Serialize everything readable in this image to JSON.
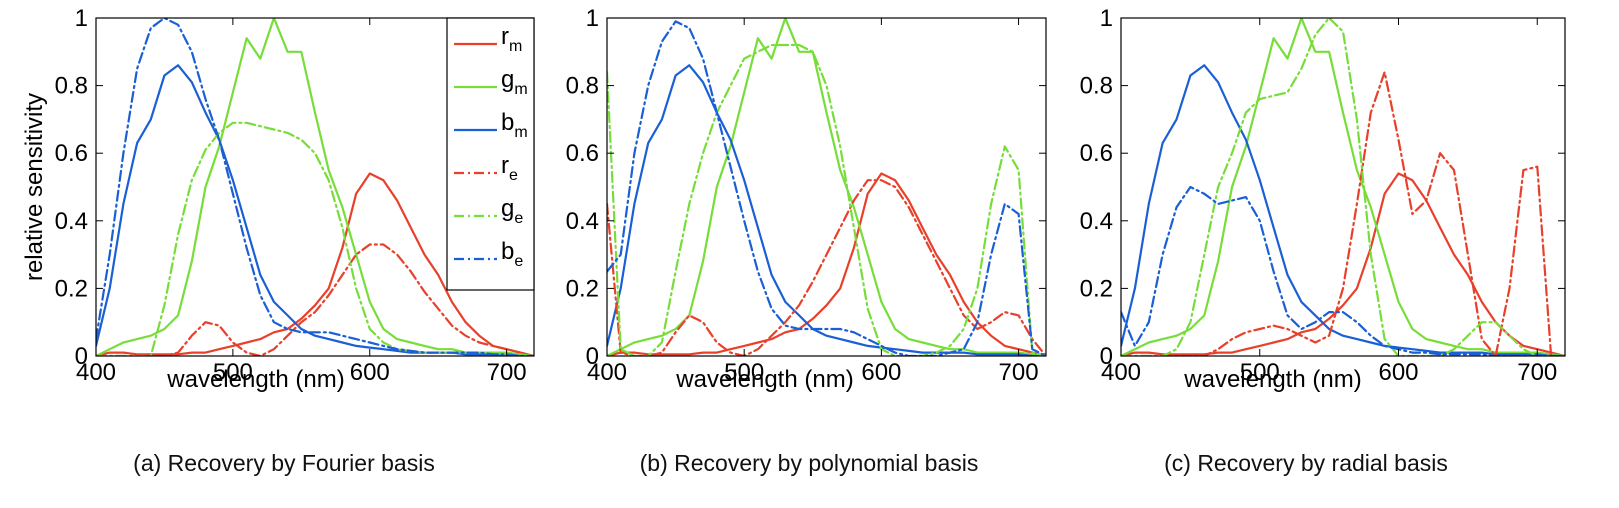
{
  "figure": {
    "ylabel": "relative sensitivity",
    "colors": {
      "red": "#e8402a",
      "green": "#77dd38",
      "blue": "#1a5fd6"
    }
  },
  "legend": [
    {
      "base": "r",
      "sub": "m",
      "color": "#e8402a",
      "style": "solid"
    },
    {
      "base": "g",
      "sub": "m",
      "color": "#77dd38",
      "style": "solid"
    },
    {
      "base": "b",
      "sub": "m",
      "color": "#1a5fd6",
      "style": "solid"
    },
    {
      "base": "r",
      "sub": "e",
      "color": "#e8402a",
      "style": "dashdot"
    },
    {
      "base": "g",
      "sub": "e",
      "color": "#77dd38",
      "style": "dashdot"
    },
    {
      "base": "b",
      "sub": "e",
      "color": "#1a5fd6",
      "style": "dashdot"
    }
  ],
  "chart_data": [
    {
      "type": "line",
      "caption": "(a) Recovery by Fourier basis",
      "xlabel": "wavelength (nm)",
      "ylabel": "relative sensitivity",
      "xlim": [
        400,
        720
      ],
      "ylim": [
        0,
        1
      ],
      "xticks": [
        400,
        500,
        600,
        700
      ],
      "yticks": [
        0,
        0.2,
        0.4,
        0.6,
        0.8,
        1
      ],
      "ytick_labels": [
        "0",
        "0.2",
        "0.4",
        "0.6",
        "0.8",
        "1"
      ],
      "legend": "top-right",
      "x": [
        400,
        410,
        420,
        430,
        440,
        450,
        460,
        470,
        480,
        490,
        500,
        510,
        520,
        530,
        540,
        550,
        560,
        570,
        580,
        590,
        600,
        610,
        620,
        630,
        640,
        650,
        660,
        670,
        680,
        690,
        700,
        710,
        720
      ],
      "series": [
        {
          "name": "r_m",
          "style": "solid",
          "color": "#e8402a",
          "values": [
            0,
            0.01,
            0.01,
            0.005,
            0.005,
            0.005,
            0.005,
            0.01,
            0.01,
            0.02,
            0.03,
            0.04,
            0.05,
            0.07,
            0.08,
            0.11,
            0.15,
            0.2,
            0.32,
            0.48,
            0.54,
            0.52,
            0.46,
            0.38,
            0.3,
            0.24,
            0.16,
            0.1,
            0.06,
            0.03,
            0.02,
            0.01,
            0
          ]
        },
        {
          "name": "g_m",
          "style": "solid",
          "color": "#77dd38",
          "values": [
            0,
            0.02,
            0.04,
            0.05,
            0.06,
            0.08,
            0.12,
            0.28,
            0.5,
            0.62,
            0.78,
            0.94,
            0.88,
            1.0,
            0.9,
            0.9,
            0.72,
            0.55,
            0.44,
            0.3,
            0.16,
            0.08,
            0.05,
            0.04,
            0.03,
            0.02,
            0.02,
            0.01,
            0.01,
            0.01,
            0.01,
            0.005,
            0
          ]
        },
        {
          "name": "b_m",
          "style": "solid",
          "color": "#1a5fd6",
          "values": [
            0.03,
            0.2,
            0.45,
            0.63,
            0.7,
            0.83,
            0.86,
            0.81,
            0.72,
            0.64,
            0.52,
            0.38,
            0.24,
            0.16,
            0.12,
            0.08,
            0.06,
            0.05,
            0.04,
            0.03,
            0.025,
            0.02,
            0.015,
            0.01,
            0.01,
            0.01,
            0.01,
            0.005,
            0.005,
            0.005,
            0.005,
            0,
            0
          ]
        },
        {
          "name": "r_e",
          "style": "dashdot",
          "color": "#e8402a",
          "values": [
            0,
            0,
            0,
            0,
            0,
            0,
            0.01,
            0.06,
            0.1,
            0.09,
            0.04,
            0.01,
            0,
            0.02,
            0.06,
            0.1,
            0.13,
            0.18,
            0.24,
            0.3,
            0.33,
            0.33,
            0.3,
            0.25,
            0.19,
            0.14,
            0.09,
            0.06,
            0.04,
            0.03,
            0.02,
            0.01,
            0
          ]
        },
        {
          "name": "g_e",
          "style": "dashdot",
          "color": "#77dd38",
          "values": [
            0,
            0,
            0,
            0,
            0,
            0.15,
            0.36,
            0.52,
            0.61,
            0.66,
            0.69,
            0.69,
            0.68,
            0.67,
            0.66,
            0.64,
            0.6,
            0.52,
            0.38,
            0.2,
            0.08,
            0.04,
            0.02,
            0.015,
            0.01,
            0.01,
            0.01,
            0.01,
            0.01,
            0.01,
            0.005,
            0.005,
            0
          ]
        },
        {
          "name": "b_e",
          "style": "dashdot",
          "color": "#1a5fd6",
          "values": [
            0.05,
            0.3,
            0.6,
            0.85,
            0.97,
            1.0,
            0.98,
            0.9,
            0.76,
            0.64,
            0.48,
            0.32,
            0.18,
            0.1,
            0.08,
            0.07,
            0.07,
            0.07,
            0.06,
            0.05,
            0.04,
            0.03,
            0.02,
            0.015,
            0.01,
            0.01,
            0.01,
            0.01,
            0.01,
            0.005,
            0.005,
            0,
            0
          ]
        }
      ]
    },
    {
      "type": "line",
      "caption": "(b) Recovery by polynomial basis",
      "xlabel": "wavelength (nm)",
      "ylabel": "",
      "xlim": [
        400,
        720
      ],
      "ylim": [
        0,
        1
      ],
      "xticks": [
        400,
        500,
        600,
        700
      ],
      "yticks": [
        0,
        0.2,
        0.4,
        0.6,
        0.8,
        1
      ],
      "ytick_labels": [
        "0",
        "0.2",
        "0.4",
        "0.6",
        "0.8",
        "1"
      ],
      "x": [
        400,
        410,
        420,
        430,
        440,
        450,
        460,
        470,
        480,
        490,
        500,
        510,
        520,
        530,
        540,
        550,
        560,
        570,
        580,
        590,
        600,
        610,
        620,
        630,
        640,
        650,
        660,
        670,
        680,
        690,
        700,
        710,
        720
      ],
      "series": [
        {
          "name": "r_m",
          "style": "solid",
          "color": "#e8402a",
          "values": [
            0,
            0.01,
            0.01,
            0.005,
            0.005,
            0.005,
            0.005,
            0.01,
            0.01,
            0.02,
            0.03,
            0.04,
            0.05,
            0.07,
            0.08,
            0.11,
            0.15,
            0.2,
            0.32,
            0.48,
            0.54,
            0.52,
            0.46,
            0.38,
            0.3,
            0.24,
            0.16,
            0.1,
            0.06,
            0.03,
            0.02,
            0.01,
            0
          ]
        },
        {
          "name": "g_m",
          "style": "solid",
          "color": "#77dd38",
          "values": [
            0,
            0.02,
            0.04,
            0.05,
            0.06,
            0.08,
            0.12,
            0.28,
            0.5,
            0.62,
            0.78,
            0.94,
            0.88,
            1.0,
            0.9,
            0.9,
            0.72,
            0.55,
            0.44,
            0.3,
            0.16,
            0.08,
            0.05,
            0.04,
            0.03,
            0.02,
            0.02,
            0.01,
            0.01,
            0.01,
            0.01,
            0.005,
            0
          ]
        },
        {
          "name": "b_m",
          "style": "solid",
          "color": "#1a5fd6",
          "values": [
            0.03,
            0.2,
            0.45,
            0.63,
            0.7,
            0.83,
            0.86,
            0.81,
            0.72,
            0.64,
            0.52,
            0.38,
            0.24,
            0.16,
            0.12,
            0.08,
            0.06,
            0.05,
            0.04,
            0.03,
            0.025,
            0.02,
            0.015,
            0.01,
            0.01,
            0.01,
            0.01,
            0.005,
            0.005,
            0.005,
            0.005,
            0,
            0
          ]
        },
        {
          "name": "r_e",
          "style": "dashdot",
          "color": "#e8402a",
          "values": [
            0.45,
            0.01,
            0,
            0,
            0.01,
            0.07,
            0.12,
            0.1,
            0.04,
            0.01,
            0,
            0.02,
            0.06,
            0.1,
            0.15,
            0.22,
            0.3,
            0.38,
            0.46,
            0.52,
            0.52,
            0.5,
            0.44,
            0.36,
            0.28,
            0.2,
            0.12,
            0.08,
            0.1,
            0.13,
            0.12,
            0.05,
            0
          ]
        },
        {
          "name": "g_e",
          "style": "dashdot",
          "color": "#77dd38",
          "values": [
            0.84,
            0.02,
            0,
            0,
            0.04,
            0.25,
            0.45,
            0.6,
            0.72,
            0.8,
            0.88,
            0.9,
            0.92,
            0.92,
            0.92,
            0.9,
            0.8,
            0.62,
            0.38,
            0.14,
            0.02,
            0,
            0,
            0,
            0.01,
            0.03,
            0.08,
            0.2,
            0.45,
            0.62,
            0.55,
            0.01,
            0
          ]
        },
        {
          "name": "b_e",
          "style": "dashdot",
          "color": "#1a5fd6",
          "values": [
            0.25,
            0.3,
            0.6,
            0.8,
            0.93,
            0.99,
            0.97,
            0.88,
            0.72,
            0.56,
            0.4,
            0.25,
            0.14,
            0.09,
            0.08,
            0.08,
            0.08,
            0.08,
            0.07,
            0.05,
            0.03,
            0.01,
            0,
            0,
            0,
            0.01,
            0.02,
            0.1,
            0.3,
            0.45,
            0.42,
            0.02,
            0
          ]
        }
      ]
    },
    {
      "type": "line",
      "caption": "(c) Recovery by radial basis",
      "xlabel": "wavelength (nm)",
      "ylabel": "",
      "xlim": [
        400,
        720
      ],
      "ylim": [
        0,
        1
      ],
      "xticks": [
        400,
        500,
        600,
        700
      ],
      "yticks": [
        0,
        0.2,
        0.4,
        0.6,
        0.8,
        1
      ],
      "ytick_labels": [
        "0",
        "0.2",
        "0.4",
        "0.6",
        "0.8",
        "1"
      ],
      "x": [
        400,
        410,
        420,
        430,
        440,
        450,
        460,
        470,
        480,
        490,
        500,
        510,
        520,
        530,
        540,
        550,
        560,
        570,
        580,
        590,
        600,
        610,
        620,
        630,
        640,
        650,
        660,
        670,
        680,
        690,
        700,
        710,
        720
      ],
      "series": [
        {
          "name": "r_m",
          "style": "solid",
          "color": "#e8402a",
          "values": [
            0,
            0.01,
            0.01,
            0.005,
            0.005,
            0.005,
            0.005,
            0.01,
            0.01,
            0.02,
            0.03,
            0.04,
            0.05,
            0.07,
            0.08,
            0.11,
            0.15,
            0.2,
            0.32,
            0.48,
            0.54,
            0.52,
            0.46,
            0.38,
            0.3,
            0.24,
            0.16,
            0.1,
            0.06,
            0.03,
            0.02,
            0.01,
            0
          ]
        },
        {
          "name": "g_m",
          "style": "solid",
          "color": "#77dd38",
          "values": [
            0,
            0.02,
            0.04,
            0.05,
            0.06,
            0.08,
            0.12,
            0.28,
            0.5,
            0.62,
            0.78,
            0.94,
            0.88,
            1.0,
            0.9,
            0.9,
            0.72,
            0.55,
            0.44,
            0.3,
            0.16,
            0.08,
            0.05,
            0.04,
            0.03,
            0.02,
            0.02,
            0.01,
            0.01,
            0.01,
            0.01,
            0.005,
            0
          ]
        },
        {
          "name": "b_m",
          "style": "solid",
          "color": "#1a5fd6",
          "values": [
            0.03,
            0.2,
            0.45,
            0.63,
            0.7,
            0.83,
            0.86,
            0.81,
            0.72,
            0.64,
            0.52,
            0.38,
            0.24,
            0.16,
            0.12,
            0.08,
            0.06,
            0.05,
            0.04,
            0.03,
            0.025,
            0.02,
            0.015,
            0.01,
            0.01,
            0.01,
            0.01,
            0.005,
            0.005,
            0.005,
            0.005,
            0,
            0
          ]
        },
        {
          "name": "r_e",
          "style": "dashdot",
          "color": "#e8402a",
          "values": [
            0,
            0,
            0,
            0,
            0,
            0,
            0,
            0.02,
            0.05,
            0.07,
            0.08,
            0.09,
            0.08,
            0.06,
            0.04,
            0.06,
            0.2,
            0.45,
            0.72,
            0.84,
            0.64,
            0.42,
            0.46,
            0.6,
            0.55,
            0.3,
            0.05,
            0,
            0.2,
            0.55,
            0.56,
            0,
            0
          ]
        },
        {
          "name": "g_e",
          "style": "dashdot",
          "color": "#77dd38",
          "values": [
            0,
            0,
            0,
            0,
            0.02,
            0.1,
            0.3,
            0.5,
            0.6,
            0.72,
            0.76,
            0.77,
            0.78,
            0.85,
            0.95,
            1.0,
            0.96,
            0.7,
            0.3,
            0.05,
            0,
            0,
            0,
            0,
            0.02,
            0.06,
            0.1,
            0.1,
            0.06,
            0.02,
            0,
            0,
            0
          ]
        },
        {
          "name": "b_e",
          "style": "dashdot",
          "color": "#1a5fd6",
          "values": [
            0.13,
            0.03,
            0.1,
            0.3,
            0.44,
            0.5,
            0.48,
            0.45,
            0.46,
            0.47,
            0.4,
            0.25,
            0.12,
            0.08,
            0.1,
            0.13,
            0.13,
            0.1,
            0.06,
            0.03,
            0.02,
            0.01,
            0.01,
            0.005,
            0.005,
            0.005,
            0.005,
            0,
            0,
            0,
            0,
            0,
            0
          ]
        }
      ]
    }
  ]
}
